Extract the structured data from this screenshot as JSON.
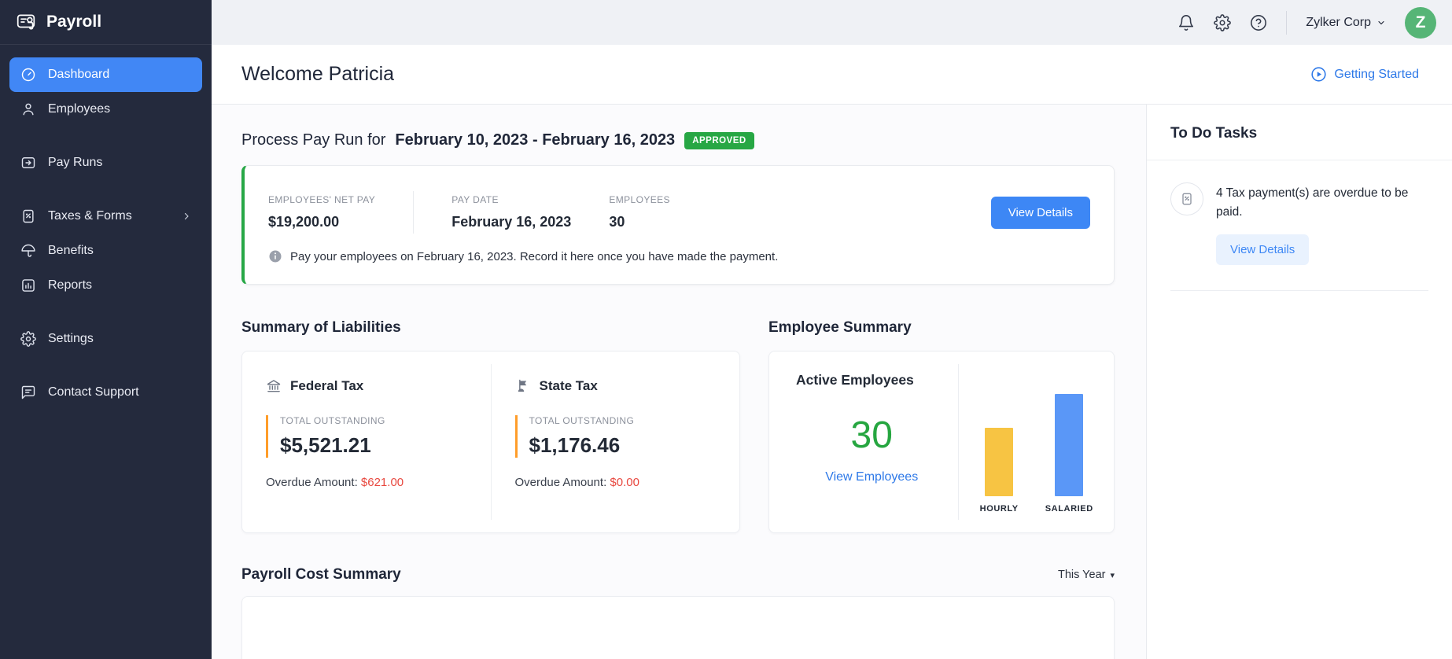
{
  "app": {
    "title": "Payroll"
  },
  "topbar": {
    "company": "Zylker Corp",
    "avatar_initial": "Z"
  },
  "sidebar": {
    "items": [
      {
        "label": "Dashboard"
      },
      {
        "label": "Employees"
      },
      {
        "label": "Pay Runs"
      },
      {
        "label": "Taxes & Forms"
      },
      {
        "label": "Benefits"
      },
      {
        "label": "Reports"
      },
      {
        "label": "Settings"
      },
      {
        "label": "Contact Support"
      }
    ]
  },
  "welcome": {
    "title": "Welcome Patricia",
    "getting_started_label": "Getting Started"
  },
  "payrun": {
    "heading_prefix": "Process Pay Run for",
    "period": "February 10, 2023 - February 16, 2023",
    "status": "APPROVED",
    "stats": [
      {
        "label": "EMPLOYEES' NET PAY",
        "value": "$19,200.00"
      },
      {
        "label": "PAY DATE",
        "value": "February 16, 2023"
      },
      {
        "label": "EMPLOYEES",
        "value": "30"
      }
    ],
    "action_label": "View Details",
    "note": "Pay your employees on February 16, 2023. Record it here once you have made the payment."
  },
  "liabilities": {
    "title": "Summary of Liabilities",
    "items": [
      {
        "name": "Federal Tax",
        "metric_label": "TOTAL OUTSTANDING",
        "amount": "$5,521.21",
        "overdue_label": "Overdue Amount:",
        "overdue_amount": "$621.00"
      },
      {
        "name": "State Tax",
        "metric_label": "TOTAL OUTSTANDING",
        "amount": "$1,176.46",
        "overdue_label": "Overdue Amount:",
        "overdue_amount": "$0.00"
      }
    ]
  },
  "employee_summary": {
    "title": "Employee Summary",
    "active_label": "Active Employees",
    "active_count": "30",
    "link_label": "View Employees"
  },
  "payroll_cost": {
    "title": "Payroll Cost Summary",
    "filter_label": "This Year"
  },
  "todo": {
    "title": "To Do Tasks",
    "task_text": "4 Tax payment(s) are overdue to be paid.",
    "action_label": "View Details"
  },
  "colors": {
    "accent_blue": "#3d87f5",
    "sidebar_active_blue": "#4187f5",
    "green": "#27a744",
    "count_green": "#26a640",
    "orange": "#ff9d2a",
    "red": "#e8483f",
    "avatar_green": "#56b576",
    "sidebar_bg": "#242a3d"
  },
  "chart_data": {
    "type": "bar",
    "title": "Active employees by pay type",
    "categories": [
      "HOURLY",
      "SALARIED"
    ],
    "values": [
      12,
      18
    ],
    "colors": [
      "#f7c443",
      "#5a97f7"
    ],
    "total_active": 30,
    "estimated": true,
    "legend_position": "below-bars",
    "grid": false
  }
}
